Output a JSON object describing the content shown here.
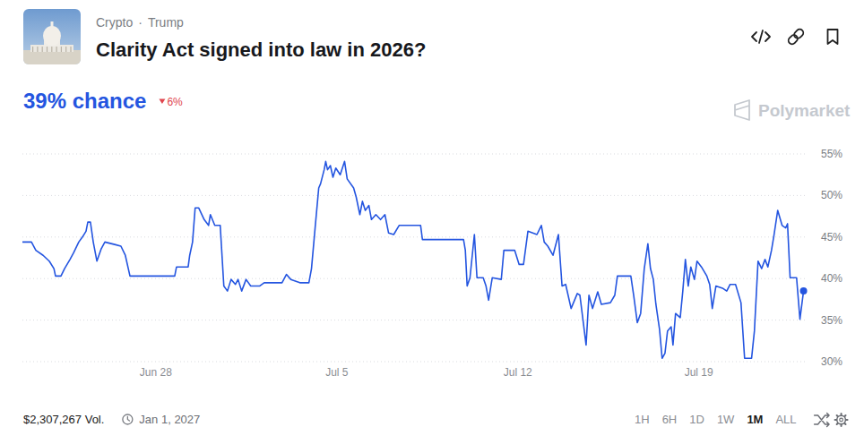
{
  "header": {
    "category": "Crypto",
    "separator": "·",
    "tag": "Trump",
    "title": "Clarity Act signed into law in 2026?",
    "probability": "39% chance",
    "change": "6%",
    "brand": "Polymarket"
  },
  "footer": {
    "volume": "$2,307,267 Vol.",
    "end_date": "Jan 1, 2027",
    "ranges": [
      "1H",
      "6H",
      "1D",
      "1W",
      "1M",
      "ALL"
    ],
    "active_range": "1M"
  },
  "chart_data": {
    "type": "line",
    "color": "#2455e0",
    "grid": true,
    "marker": "end",
    "xlim": [
      173.84,
      204.1
    ],
    "xticks": [
      {
        "value": 179,
        "label": "Jun 28"
      },
      {
        "value": 186,
        "label": "Jul 5"
      },
      {
        "value": 193,
        "label": "Jul 12"
      },
      {
        "value": 200,
        "label": "Jul 19"
      }
    ],
    "ylim": [
      30,
      55
    ],
    "yticks": [
      {
        "value": 30,
        "label": "30%"
      },
      {
        "value": 35,
        "label": "35%"
      },
      {
        "value": 40,
        "label": "40%"
      },
      {
        "value": 45,
        "label": "45%"
      },
      {
        "value": 50,
        "label": "50%"
      },
      {
        "value": 55,
        "label": "55%"
      }
    ],
    "x": [
      173.84,
      174.19,
      174.36,
      174.64,
      174.88,
      175.06,
      175.12,
      175.33,
      175.47,
      175.68,
      175.82,
      176.02,
      176.16,
      176.3,
      176.37,
      176.47,
      176.58,
      176.72,
      176.89,
      177.03,
      177.41,
      177.65,
      177.82,
      178.0,
      179.73,
      179.8,
      180.25,
      180.31,
      180.42,
      180.52,
      180.66,
      180.87,
      181.04,
      181.11,
      181.28,
      181.49,
      181.63,
      181.77,
      181.91,
      182.08,
      182.18,
      182.32,
      182.49,
      182.67,
      183.01,
      183.19,
      183.88,
      184.05,
      184.22,
      184.57,
      184.92,
      185.02,
      185.16,
      185.3,
      185.37,
      185.51,
      185.57,
      185.64,
      185.75,
      185.85,
      185.96,
      186.13,
      186.3,
      186.4,
      186.65,
      186.75,
      186.89,
      186.99,
      187.1,
      187.24,
      187.34,
      187.51,
      187.69,
      187.86,
      188.0,
      188.2,
      188.41,
      189.24,
      189.31,
      190.9,
      190.97,
      191.04,
      191.15,
      191.32,
      191.42,
      191.66,
      191.77,
      191.87,
      192.01,
      192.36,
      192.46,
      192.88,
      193.05,
      193.22,
      193.39,
      193.74,
      193.91,
      194.02,
      194.16,
      194.36,
      194.57,
      194.71,
      194.85,
      195.06,
      195.3,
      195.4,
      195.64,
      195.75,
      195.89,
      196.09,
      196.23,
      196.58,
      196.75,
      196.85,
      197.37,
      197.48,
      197.62,
      197.75,
      197.89,
      198.03,
      198.13,
      198.24,
      198.34,
      198.48,
      198.58,
      198.69,
      198.79,
      198.93,
      199.0,
      199.1,
      199.28,
      199.38,
      199.48,
      199.59,
      199.69,
      199.83,
      199.93,
      200.1,
      200.31,
      200.42,
      200.52,
      200.66,
      200.94,
      201.08,
      201.21,
      201.42,
      201.63,
      201.77,
      202.04,
      202.15,
      202.29,
      202.43,
      202.56,
      202.67,
      202.81,
      202.91,
      203.05,
      203.22,
      203.36,
      203.43,
      203.53,
      203.78,
      203.91,
      204.05
    ],
    "values": [
      44.4,
      44.4,
      43.4,
      42.8,
      42.1,
      41.2,
      40.3,
      40.3,
      41.2,
      42.3,
      43.1,
      44.4,
      45.0,
      45.7,
      46.8,
      46.8,
      44.4,
      42.1,
      43.6,
      44.4,
      44.1,
      43.9,
      42.8,
      40.3,
      40.3,
      41.4,
      41.4,
      42.8,
      44.4,
      48.5,
      48.5,
      47.1,
      46.4,
      47.7,
      46.4,
      46.4,
      39.1,
      38.5,
      39.9,
      39.3,
      39.9,
      38.5,
      39.9,
      39.1,
      39.1,
      39.5,
      39.5,
      40.5,
      39.9,
      39.5,
      39.5,
      41.2,
      46.1,
      50.9,
      51.4,
      53.1,
      54.1,
      53.1,
      53.6,
      52.2,
      53.3,
      52.5,
      54.1,
      52.0,
      50.9,
      49.8,
      47.7,
      49.3,
      48.2,
      48.8,
      47.1,
      47.7,
      47.1,
      47.7,
      45.5,
      45.3,
      46.4,
      46.4,
      44.7,
      44.7,
      43.4,
      39.1,
      40.1,
      45.3,
      40.1,
      40.1,
      39.1,
      37.4,
      40.1,
      39.9,
      43.4,
      43.4,
      41.7,
      41.7,
      45.7,
      45.3,
      46.4,
      44.4,
      43.9,
      42.8,
      45.3,
      39.1,
      39.3,
      36.4,
      38.2,
      38.0,
      32.0,
      38.0,
      36.4,
      38.4,
      36.9,
      37.1,
      38.0,
      40.3,
      40.3,
      38.0,
      34.7,
      35.8,
      41.2,
      44.2,
      41.2,
      39.9,
      36.9,
      33.9,
      30.4,
      31.0,
      33.7,
      34.2,
      32.0,
      35.8,
      35.3,
      38.5,
      42.3,
      39.1,
      41.4,
      39.9,
      42.1,
      41.4,
      40.3,
      39.3,
      36.4,
      39.1,
      38.8,
      38.5,
      39.3,
      39.3,
      37.1,
      30.4,
      30.4,
      33.7,
      42.1,
      41.2,
      42.3,
      41.4,
      43.4,
      45.3,
      48.2,
      46.4,
      46.1,
      46.6,
      40.1,
      40.1,
      35.1,
      38.5
    ]
  }
}
